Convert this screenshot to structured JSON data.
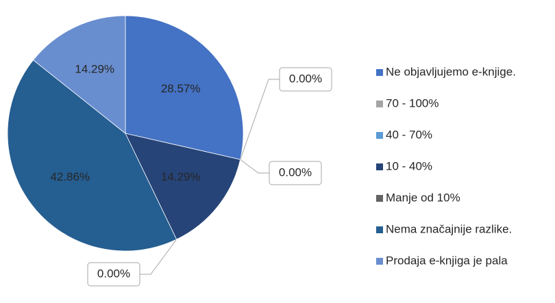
{
  "chart_data": {
    "type": "pie",
    "categories": [
      "Ne objavljujemo e-knjige.",
      "70 - 100%",
      "40 - 70%",
      "10 - 40%",
      "Manje od 10%",
      "Nema značajnije razlike.",
      "Prodaja e-knjiga je pala"
    ],
    "values": [
      28.57,
      0,
      0,
      14.29,
      0,
      42.86,
      14.29
    ],
    "value_labels": [
      "28.57%",
      "0.00%",
      "0.00%",
      "14.29%",
      "0.00%",
      "42.86%",
      "14.29%"
    ],
    "colors": [
      "#4472c4",
      "#a5a5a5",
      "#5b9bd5",
      "#264478",
      "#636363",
      "#255e91",
      "#698ed0"
    ],
    "legend": "right"
  }
}
